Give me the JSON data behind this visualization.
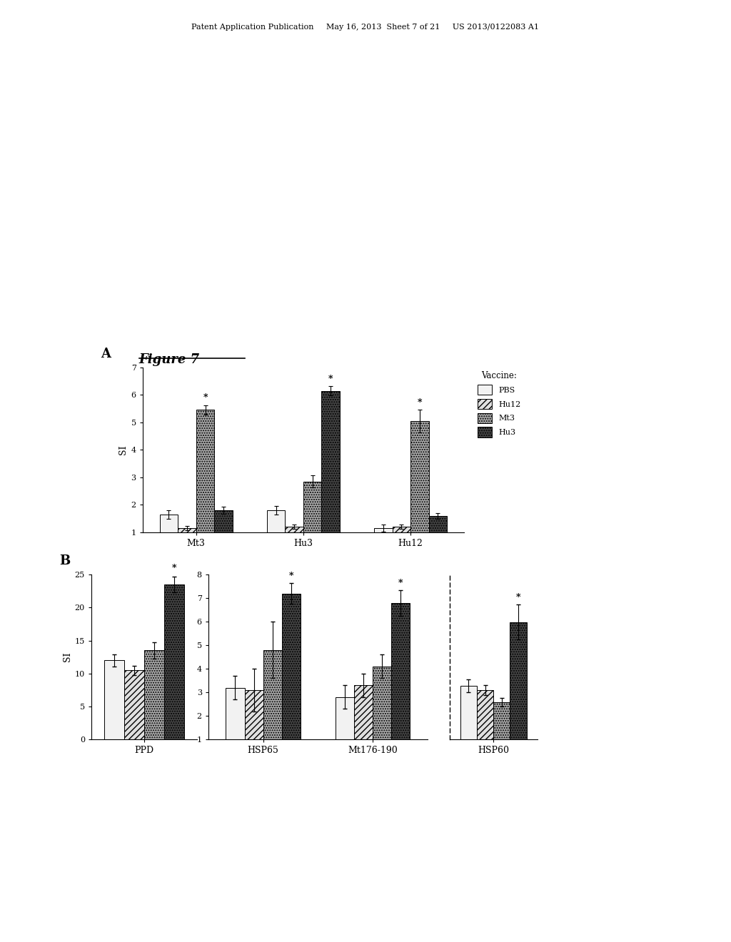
{
  "panel_A": {
    "groups": [
      "Mt3",
      "Hu3",
      "Hu12"
    ],
    "series": [
      "PBS",
      "Hu12",
      "Mt3",
      "Hu3"
    ],
    "values": {
      "Mt3": [
        1.65,
        1.15,
        5.45,
        1.8
      ],
      "Hu3": [
        1.8,
        1.2,
        2.85,
        6.15
      ],
      "Hu12": [
        1.15,
        1.2,
        5.05,
        1.6
      ]
    },
    "errors": {
      "Mt3": [
        0.15,
        0.08,
        0.18,
        0.12
      ],
      "Hu3": [
        0.15,
        0.08,
        0.22,
        0.18
      ],
      "Hu12": [
        0.12,
        0.08,
        0.42,
        0.1
      ]
    },
    "significant": {
      "Mt3": [
        false,
        false,
        true,
        false
      ],
      "Hu3": [
        false,
        false,
        false,
        true
      ],
      "Hu12": [
        false,
        false,
        true,
        false
      ]
    },
    "ylabel": "SI",
    "ylim": [
      1,
      7
    ],
    "yticks": [
      1,
      2,
      3,
      4,
      5,
      6,
      7
    ]
  },
  "panel_B_ppd": {
    "group": "PPD",
    "values": [
      12.0,
      10.5,
      13.5,
      23.5
    ],
    "errors": [
      0.9,
      0.7,
      1.2,
      1.2
    ],
    "significant": [
      false,
      false,
      false,
      true
    ],
    "ylim": [
      0,
      25
    ],
    "yticks": [
      0,
      5,
      10,
      15,
      20,
      25
    ]
  },
  "panel_B_mid": {
    "groups": [
      "HSP65",
      "Mt176-190"
    ],
    "values": {
      "HSP65": [
        3.2,
        3.1,
        4.8,
        7.2
      ],
      "Mt176-190": [
        2.8,
        3.3,
        4.1,
        6.8
      ]
    },
    "errors": {
      "HSP65": [
        0.5,
        0.9,
        1.2,
        0.45
      ],
      "Mt176-190": [
        0.5,
        0.5,
        0.5,
        0.55
      ]
    },
    "significant": {
      "HSP65": [
        false,
        false,
        false,
        true
      ],
      "Mt176-190": [
        false,
        false,
        false,
        true
      ]
    },
    "ylim": [
      1,
      8
    ],
    "yticks": [
      1,
      2,
      3,
      4,
      5,
      6,
      7,
      8
    ]
  },
  "panel_B_hsp60": {
    "group": "HSP60",
    "values": [
      1.3,
      1.2,
      0.9,
      2.85
    ],
    "errors": [
      0.15,
      0.12,
      0.1,
      0.42
    ],
    "significant": [
      false,
      false,
      false,
      true
    ],
    "ylim": [
      0,
      4
    ],
    "yticks": []
  },
  "series": [
    "PBS",
    "Hu12",
    "Mt3",
    "Hu3"
  ],
  "series_styles": {
    "PBS": {
      "facecolor": "#f2f2f2",
      "hatch": "",
      "edgecolor": "#000000"
    },
    "Hu12": {
      "facecolor": "#e0e0e0",
      "hatch": "////",
      "edgecolor": "#000000"
    },
    "Mt3": {
      "facecolor": "#aaaaaa",
      "hatch": ".....",
      "edgecolor": "#000000"
    },
    "Hu3": {
      "facecolor": "#444444",
      "hatch": ".....",
      "edgecolor": "#000000"
    }
  },
  "legend_title": "Vaccine:",
  "header": "Patent Application Publication     May 16, 2013  Sheet 7 of 21     US 2013/0122083 A1",
  "figure_label": "Figure 7",
  "bar_width": 0.17
}
